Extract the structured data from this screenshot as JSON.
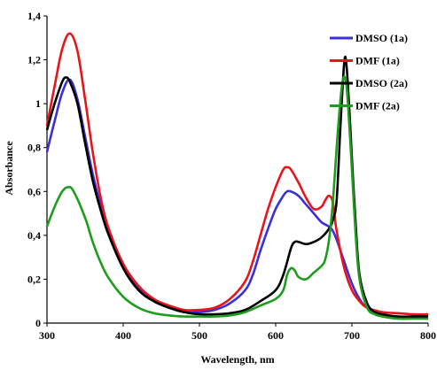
{
  "chart_data": {
    "type": "line",
    "title": "",
    "xlabel": "Wavelength, nm",
    "ylabel": "Absorbance",
    "xlim": [
      300,
      800
    ],
    "ylim": [
      0,
      1.4
    ],
    "x_ticks": [
      300,
      400,
      500,
      600,
      700,
      800
    ],
    "x_tick_labels": [
      "300",
      "400",
      "500",
      "600",
      "700",
      "800"
    ],
    "y_ticks": [
      0,
      0.2,
      0.4,
      0.6,
      0.8,
      1,
      1.2,
      1.4
    ],
    "y_tick_labels": [
      "0",
      "0,2",
      "0,4",
      "0,6",
      "0,8",
      "1",
      "1,2",
      "1,4"
    ],
    "grid": false,
    "legend_position": "top-right",
    "series": [
      {
        "name": "DMSO (1a)",
        "color": "#3a2fd8",
        "points": [
          [
            300,
            0.78
          ],
          [
            310,
            0.92
          ],
          [
            320,
            1.05
          ],
          [
            330,
            1.11
          ],
          [
            340,
            1.02
          ],
          [
            350,
            0.85
          ],
          [
            360,
            0.68
          ],
          [
            370,
            0.54
          ],
          [
            380,
            0.42
          ],
          [
            400,
            0.26
          ],
          [
            420,
            0.16
          ],
          [
            440,
            0.1
          ],
          [
            460,
            0.07
          ],
          [
            480,
            0.05
          ],
          [
            500,
            0.05
          ],
          [
            520,
            0.06
          ],
          [
            540,
            0.09
          ],
          [
            560,
            0.15
          ],
          [
            570,
            0.22
          ],
          [
            580,
            0.33
          ],
          [
            590,
            0.43
          ],
          [
            600,
            0.52
          ],
          [
            610,
            0.58
          ],
          [
            615,
            0.6
          ],
          [
            620,
            0.6
          ],
          [
            630,
            0.58
          ],
          [
            640,
            0.54
          ],
          [
            650,
            0.5
          ],
          [
            660,
            0.46
          ],
          [
            670,
            0.44
          ],
          [
            675,
            0.42
          ],
          [
            680,
            0.38
          ],
          [
            690,
            0.28
          ],
          [
            700,
            0.18
          ],
          [
            710,
            0.11
          ],
          [
            720,
            0.07
          ],
          [
            740,
            0.04
          ],
          [
            760,
            0.03
          ],
          [
            780,
            0.025
          ],
          [
            800,
            0.02
          ]
        ]
      },
      {
        "name": "DMF (1a)",
        "color": "#e8141c",
        "points": [
          [
            300,
            0.9
          ],
          [
            310,
            1.08
          ],
          [
            320,
            1.25
          ],
          [
            330,
            1.32
          ],
          [
            340,
            1.24
          ],
          [
            350,
            1.02
          ],
          [
            360,
            0.78
          ],
          [
            370,
            0.58
          ],
          [
            380,
            0.44
          ],
          [
            400,
            0.27
          ],
          [
            420,
            0.17
          ],
          [
            440,
            0.11
          ],
          [
            460,
            0.08
          ],
          [
            480,
            0.06
          ],
          [
            500,
            0.06
          ],
          [
            520,
            0.07
          ],
          [
            540,
            0.11
          ],
          [
            560,
            0.19
          ],
          [
            570,
            0.28
          ],
          [
            580,
            0.4
          ],
          [
            590,
            0.52
          ],
          [
            600,
            0.62
          ],
          [
            610,
            0.7
          ],
          [
            615,
            0.71
          ],
          [
            620,
            0.7
          ],
          [
            630,
            0.64
          ],
          [
            640,
            0.57
          ],
          [
            650,
            0.52
          ],
          [
            660,
            0.53
          ],
          [
            665,
            0.56
          ],
          [
            670,
            0.58
          ],
          [
            675,
            0.55
          ],
          [
            680,
            0.42
          ],
          [
            690,
            0.25
          ],
          [
            700,
            0.15
          ],
          [
            710,
            0.1
          ],
          [
            720,
            0.07
          ],
          [
            740,
            0.05
          ],
          [
            760,
            0.045
          ],
          [
            780,
            0.04
          ],
          [
            800,
            0.04
          ]
        ]
      },
      {
        "name": "DMSO (2a)",
        "color": "#000000",
        "points": [
          [
            300,
            0.88
          ],
          [
            310,
            1.0
          ],
          [
            320,
            1.1
          ],
          [
            325,
            1.12
          ],
          [
            330,
            1.1
          ],
          [
            340,
            1.0
          ],
          [
            350,
            0.82
          ],
          [
            360,
            0.65
          ],
          [
            370,
            0.52
          ],
          [
            380,
            0.41
          ],
          [
            400,
            0.25
          ],
          [
            420,
            0.15
          ],
          [
            440,
            0.1
          ],
          [
            460,
            0.07
          ],
          [
            480,
            0.05
          ],
          [
            500,
            0.04
          ],
          [
            520,
            0.04
          ],
          [
            540,
            0.045
          ],
          [
            560,
            0.06
          ],
          [
            580,
            0.1
          ],
          [
            600,
            0.15
          ],
          [
            610,
            0.22
          ],
          [
            620,
            0.34
          ],
          [
            625,
            0.37
          ],
          [
            630,
            0.37
          ],
          [
            640,
            0.36
          ],
          [
            650,
            0.37
          ],
          [
            660,
            0.39
          ],
          [
            670,
            0.43
          ],
          [
            675,
            0.47
          ],
          [
            680,
            0.56
          ],
          [
            685,
            0.9
          ],
          [
            690,
            1.19
          ],
          [
            693,
            1.17
          ],
          [
            697,
            0.95
          ],
          [
            700,
            0.75
          ],
          [
            705,
            0.45
          ],
          [
            710,
            0.22
          ],
          [
            720,
            0.09
          ],
          [
            730,
            0.05
          ],
          [
            740,
            0.04
          ],
          [
            760,
            0.03
          ],
          [
            780,
            0.03
          ],
          [
            800,
            0.03
          ]
        ]
      },
      {
        "name": "DMF (2a)",
        "color": "#1e9c1e",
        "points": [
          [
            300,
            0.44
          ],
          [
            310,
            0.53
          ],
          [
            320,
            0.6
          ],
          [
            328,
            0.62
          ],
          [
            335,
            0.6
          ],
          [
            350,
            0.48
          ],
          [
            360,
            0.37
          ],
          [
            370,
            0.28
          ],
          [
            380,
            0.21
          ],
          [
            400,
            0.12
          ],
          [
            420,
            0.07
          ],
          [
            440,
            0.045
          ],
          [
            460,
            0.035
          ],
          [
            480,
            0.03
          ],
          [
            500,
            0.03
          ],
          [
            520,
            0.03
          ],
          [
            540,
            0.035
          ],
          [
            560,
            0.05
          ],
          [
            580,
            0.08
          ],
          [
            600,
            0.11
          ],
          [
            610,
            0.15
          ],
          [
            615,
            0.22
          ],
          [
            620,
            0.25
          ],
          [
            625,
            0.24
          ],
          [
            630,
            0.21
          ],
          [
            640,
            0.2
          ],
          [
            650,
            0.23
          ],
          [
            660,
            0.26
          ],
          [
            665,
            0.29
          ],
          [
            670,
            0.38
          ],
          [
            675,
            0.55
          ],
          [
            680,
            0.8
          ],
          [
            685,
            1.02
          ],
          [
            689,
            1.12
          ],
          [
            693,
            1.08
          ],
          [
            697,
            0.88
          ],
          [
            700,
            0.7
          ],
          [
            705,
            0.4
          ],
          [
            710,
            0.2
          ],
          [
            720,
            0.07
          ],
          [
            730,
            0.04
          ],
          [
            740,
            0.03
          ],
          [
            760,
            0.02
          ],
          [
            780,
            0.02
          ],
          [
            800,
            0.02
          ]
        ]
      }
    ]
  }
}
